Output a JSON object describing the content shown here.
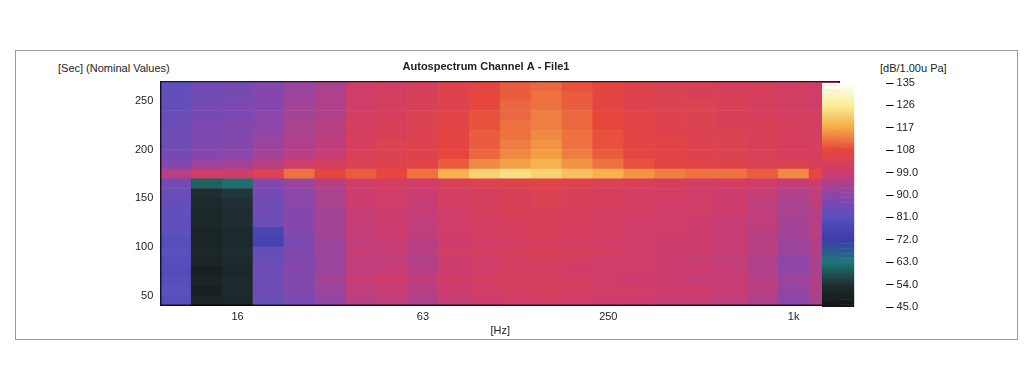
{
  "chart_data": {
    "type": "heatmap",
    "title": "Autospectrum Channel A - File1",
    "x_label": "[Hz]",
    "y_label": "[Sec] (Nominal Values)",
    "categories": [
      null,
      null,
      "16",
      null,
      null,
      null,
      null,
      null,
      "63",
      null,
      null,
      null,
      null,
      null,
      "250",
      null,
      null,
      null,
      null,
      null,
      "1k",
      null
    ],
    "ylim": [
      40,
      270
    ],
    "yticks": [
      50,
      100,
      150,
      200,
      250
    ],
    "grid": false,
    "y_bins": [
      40,
      50,
      60,
      70,
      80,
      90,
      100,
      110,
      120,
      130,
      140,
      150,
      160,
      170,
      180,
      190,
      200,
      210,
      220,
      230,
      240,
      250,
      260,
      270
    ],
    "cells": [
      [
        80,
        50,
        51,
        84,
        87,
        91,
        96,
        97,
        95,
        98,
        99,
        100,
        101,
        100,
        99,
        99,
        98,
        98,
        97,
        95,
        90,
        94
      ],
      [
        81,
        49,
        52,
        85,
        88,
        92,
        97,
        98,
        96,
        99,
        100,
        101,
        102,
        101,
        100,
        100,
        99,
        99,
        98,
        96,
        91,
        95
      ],
      [
        80,
        50,
        52,
        84,
        88,
        93,
        98,
        99,
        97,
        100,
        101,
        102,
        102,
        101,
        100,
        99,
        99,
        98,
        98,
        96,
        92,
        95
      ],
      [
        79,
        49,
        51,
        85,
        89,
        92,
        97,
        98,
        96,
        99,
        100,
        101,
        101,
        100,
        100,
        100,
        99,
        99,
        98,
        95,
        91,
        94
      ],
      [
        80,
        50,
        52,
        84,
        88,
        92,
        97,
        97,
        95,
        99,
        100,
        101,
        102,
        101,
        100,
        100,
        99,
        98,
        97,
        95,
        90,
        94
      ],
      [
        81,
        51,
        53,
        83,
        88,
        92,
        98,
        98,
        96,
        100,
        101,
        102,
        103,
        102,
        101,
        100,
        99,
        99,
        98,
        96,
        92,
        95
      ],
      [
        80,
        50,
        52,
        75,
        87,
        92,
        97,
        98,
        96,
        99,
        100,
        101,
        102,
        101,
        100,
        100,
        99,
        99,
        98,
        96,
        92,
        95
      ],
      [
        81,
        50,
        52,
        76,
        88,
        93,
        98,
        99,
        97,
        100,
        101,
        102,
        103,
        102,
        101,
        100,
        100,
        99,
        98,
        96,
        93,
        96
      ],
      [
        82,
        51,
        53,
        84,
        89,
        93,
        98,
        99,
        97,
        100,
        101,
        102,
        103,
        102,
        101,
        100,
        100,
        99,
        98,
        97,
        93,
        96
      ],
      [
        82,
        51,
        53,
        85,
        89,
        93,
        98,
        99,
        98,
        100,
        102,
        103,
        103,
        102,
        101,
        101,
        100,
        100,
        99,
        97,
        94,
        96
      ],
      [
        83,
        52,
        54,
        85,
        90,
        94,
        99,
        100,
        98,
        101,
        102,
        103,
        104,
        103,
        102,
        101,
        100,
        100,
        99,
        97,
        94,
        97
      ],
      [
        84,
        53,
        55,
        86,
        90,
        94,
        99,
        100,
        99,
        101,
        102,
        103,
        104,
        103,
        102,
        101,
        101,
        100,
        99,
        98,
        95,
        97
      ],
      [
        86,
        60,
        62,
        88,
        92,
        96,
        100,
        101,
        100,
        103,
        104,
        105,
        106,
        105,
        104,
        103,
        102,
        101,
        101,
        100,
        98,
        99
      ],
      [
        96,
        100,
        100,
        104,
        112,
        108,
        110,
        108,
        112,
        118,
        122,
        124,
        122,
        120,
        118,
        115,
        113,
        112,
        112,
        110,
        114,
        108
      ],
      [
        88,
        92,
        93,
        96,
        100,
        101,
        104,
        105,
        106,
        110,
        114,
        116,
        118,
        115,
        112,
        109,
        107,
        106,
        105,
        104,
        104,
        103
      ],
      [
        86,
        89,
        90,
        93,
        96,
        98,
        103,
        104,
        105,
        108,
        111,
        114,
        116,
        113,
        110,
        107,
        106,
        105,
        104,
        103,
        102,
        102
      ],
      [
        85,
        88,
        89,
        92,
        95,
        97,
        102,
        104,
        105,
        107,
        110,
        113,
        115,
        112,
        109,
        107,
        106,
        105,
        104,
        103,
        102,
        102
      ],
      [
        85,
        87,
        88,
        91,
        94,
        96,
        102,
        103,
        104,
        107,
        110,
        112,
        114,
        112,
        109,
        106,
        105,
        104,
        104,
        103,
        102,
        101
      ],
      [
        84,
        87,
        88,
        90,
        94,
        96,
        101,
        103,
        104,
        106,
        109,
        112,
        113,
        111,
        108,
        106,
        105,
        104,
        103,
        103,
        102,
        101
      ],
      [
        84,
        86,
        87,
        90,
        93,
        95,
        101,
        102,
        104,
        106,
        109,
        111,
        113,
        111,
        108,
        106,
        105,
        104,
        103,
        102,
        101,
        101
      ],
      [
        83,
        86,
        87,
        89,
        93,
        95,
        100,
        102,
        103,
        105,
        108,
        111,
        112,
        110,
        107,
        105,
        104,
        104,
        103,
        102,
        101,
        100
      ],
      [
        83,
        85,
        86,
        89,
        92,
        95,
        100,
        101,
        103,
        105,
        108,
        110,
        112,
        110,
        107,
        105,
        104,
        103,
        103,
        102,
        101,
        100
      ],
      [
        82,
        85,
        86,
        88,
        92,
        94,
        100,
        101,
        102,
        105,
        107,
        110,
        111,
        109,
        107,
        105,
        104,
        103,
        102,
        102,
        101,
        100
      ]
    ],
    "colorbar": {
      "label": "[dB/1.00u Pa]",
      "range": [
        45,
        135
      ],
      "ticks": [
        {
          "value": 45,
          "label": "45.0"
        },
        {
          "value": 54,
          "label": "54.0"
        },
        {
          "value": 63,
          "label": "63.0"
        },
        {
          "value": 72,
          "label": "72.0"
        },
        {
          "value": 81,
          "label": "81.0"
        },
        {
          "value": 90,
          "label": "90.0"
        },
        {
          "value": 99,
          "label": "99.0"
        },
        108,
        117,
        126,
        135
      ]
    }
  }
}
